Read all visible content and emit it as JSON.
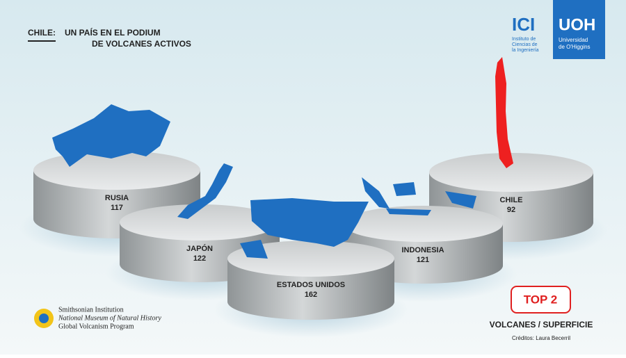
{
  "header": {
    "label": "CHILE:",
    "line1": "UN PAÍS EN EL PODIUM",
    "line2": "DE VOLCANES ACTIVOS"
  },
  "logos": {
    "ici": {
      "name": "ICI",
      "lines": [
        "Instituto de",
        "Ciencias de",
        "la Ingeniería"
      ]
    },
    "uoh": {
      "name": "UOH",
      "lines": [
        "Universidad",
        "de O'Higgins"
      ]
    }
  },
  "podiums": [
    {
      "country": "RUSIA",
      "volcanoes": 117
    },
    {
      "country": "JAPÓN",
      "volcanoes": 122
    },
    {
      "country": "ESTADOS UNIDOS",
      "volcanoes": 162
    },
    {
      "country": "INDONESIA",
      "volcanoes": 121
    },
    {
      "country": "CHILE",
      "volcanoes": 92
    }
  ],
  "badge": "TOP 2",
  "caption": "VOLCANES / SUPERFICIE",
  "credits": "Créditos: Laura Becerril",
  "source": [
    "Smithsonian Institution",
    "National Museum of Natural History",
    "Global Volcanism Program"
  ]
}
